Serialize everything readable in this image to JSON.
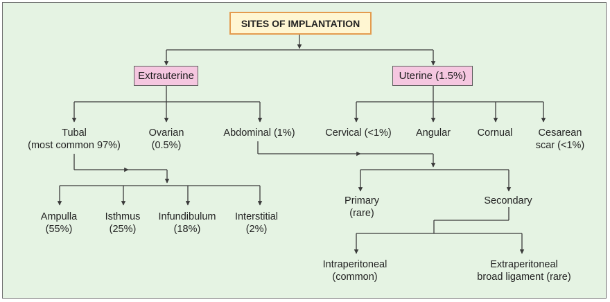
{
  "title": "SITES OF IMPLANTATION",
  "colors": {
    "background": "#e5f3e3",
    "title_fill": "#fff6d2",
    "title_border": "#e49b4e",
    "category_fill": "#f5c7e0",
    "line": "#3a3a3a"
  },
  "extrauterine": {
    "label": "Extrauterine",
    "tubal": {
      "line1": "Tubal",
      "line2": "(most common 97%)"
    },
    "ovarian": {
      "line1": "Ovarian",
      "line2": "(0.5%)"
    },
    "abdominal": {
      "line1": "Abdominal (1%)"
    },
    "tubal_sites": {
      "ampulla": {
        "line1": "Ampulla",
        "line2": "(55%)"
      },
      "isthmus": {
        "line1": "Isthmus",
        "line2": "(25%)"
      },
      "infundibulum": {
        "line1": "Infundibulum",
        "line2": "(18%)"
      },
      "interstitial": {
        "line1": "Interstitial",
        "line2": "(2%)"
      }
    }
  },
  "uterine": {
    "label": "Uterine (1.5%)",
    "cervical": {
      "line1": "Cervical (<1%)"
    },
    "angular": {
      "line1": "Angular"
    },
    "cornual": {
      "line1": "Cornual"
    },
    "cesarean": {
      "line1": "Cesarean",
      "line2": "scar (<1%)"
    }
  },
  "abdominal_types": {
    "primary": {
      "line1": "Primary",
      "line2": "(rare)"
    },
    "secondary": {
      "line1": "Secondary"
    },
    "intraperitoneal": {
      "line1": "Intraperitoneal",
      "line2": "(common)"
    },
    "extraperitoneal": {
      "line1": "Extraperitoneal",
      "line2": "broad ligament (rare)"
    }
  }
}
